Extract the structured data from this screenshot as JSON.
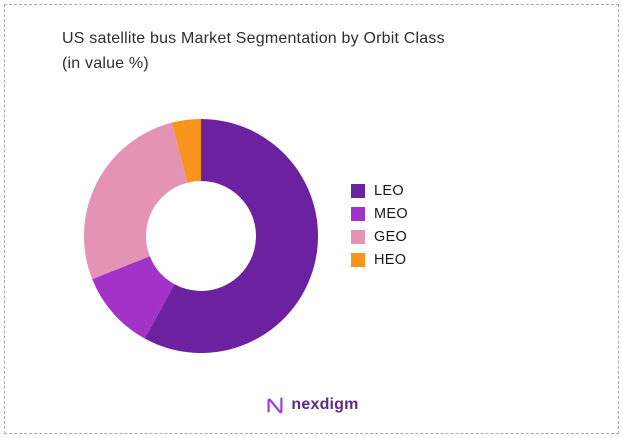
{
  "title": {
    "line1": "US satellite bus Market Segmentation by Orbit Class",
    "line2": "(in value %)"
  },
  "chart_data": {
    "type": "pie",
    "subtype": "donut",
    "title": "US satellite bus Market Segmentation by Orbit Class (in value %)",
    "unit": "value %",
    "segments": [
      {
        "label": "LEO",
        "value": 58,
        "color": "#6C21A0"
      },
      {
        "label": "MEO",
        "value": 11,
        "color": "#A233C9"
      },
      {
        "label": "GEO",
        "value": 27,
        "color": "#E493B4"
      },
      {
        "label": "HEO",
        "value": 4,
        "color": "#F7941E"
      }
    ],
    "start_angle_deg": -90,
    "direction": "clockwise",
    "inner_radius_ratio": 0.47,
    "legend_position": "right",
    "data_labels": "none"
  },
  "footer": {
    "brand": "nexdigm",
    "brand_color": "#5E2A84",
    "icon_color": "#A13BDF"
  }
}
